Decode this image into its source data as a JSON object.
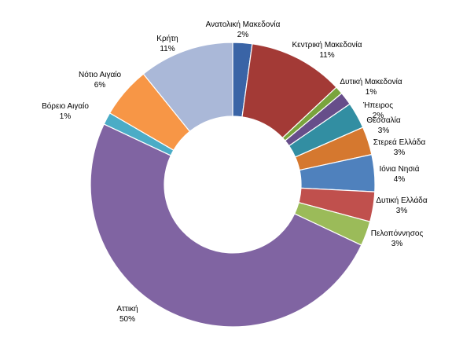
{
  "chart_data": {
    "type": "pie",
    "donut": true,
    "title": "",
    "slices": [
      {
        "label": "Ανατολική Μακεδονία",
        "percent_label": "2%",
        "value": 2.2,
        "color": "#3a64a6"
      },
      {
        "label": "Κεντρική Μακεδονία",
        "percent_label": "11%",
        "value": 10.8,
        "color": "#a33a36"
      },
      {
        "label": "Δυτική Μακεδονία",
        "percent_label": "1%",
        "value": 0.9,
        "color": "#79a43d"
      },
      {
        "label": "Ήπειρος",
        "percent_label": "2%",
        "value": 1.5,
        "color": "#674e8a"
      },
      {
        "label": "Θεσσαλία",
        "percent_label": "3%",
        "value": 3.0,
        "color": "#328ea2"
      },
      {
        "label": "Στερεά Ελλάδα",
        "percent_label": "3%",
        "value": 3.2,
        "color": "#d5782f"
      },
      {
        "label": "Ιόνια Νησιά",
        "percent_label": "4%",
        "value": 4.2,
        "color": "#4f81bd"
      },
      {
        "label": "Δυτική Ελλάδα",
        "percent_label": "3%",
        "value": 3.4,
        "color": "#c0504d"
      },
      {
        "label": "Πελοπόννησος",
        "percent_label": "3%",
        "value": 2.8,
        "color": "#9bbb59"
      },
      {
        "label": "Αττική",
        "percent_label": "50%",
        "value": 50.0,
        "color": "#8064a2"
      },
      {
        "label": "Βόρειο Αιγαίο",
        "percent_label": "1%",
        "value": 1.4,
        "color": "#4bacc6"
      },
      {
        "label": "Νότιο Αιγαίο",
        "percent_label": "6%",
        "value": 5.8,
        "color": "#f79646"
      },
      {
        "label": "Κρήτη",
        "percent_label": "11%",
        "value": 10.8,
        "color": "#aab8d8"
      }
    ]
  }
}
